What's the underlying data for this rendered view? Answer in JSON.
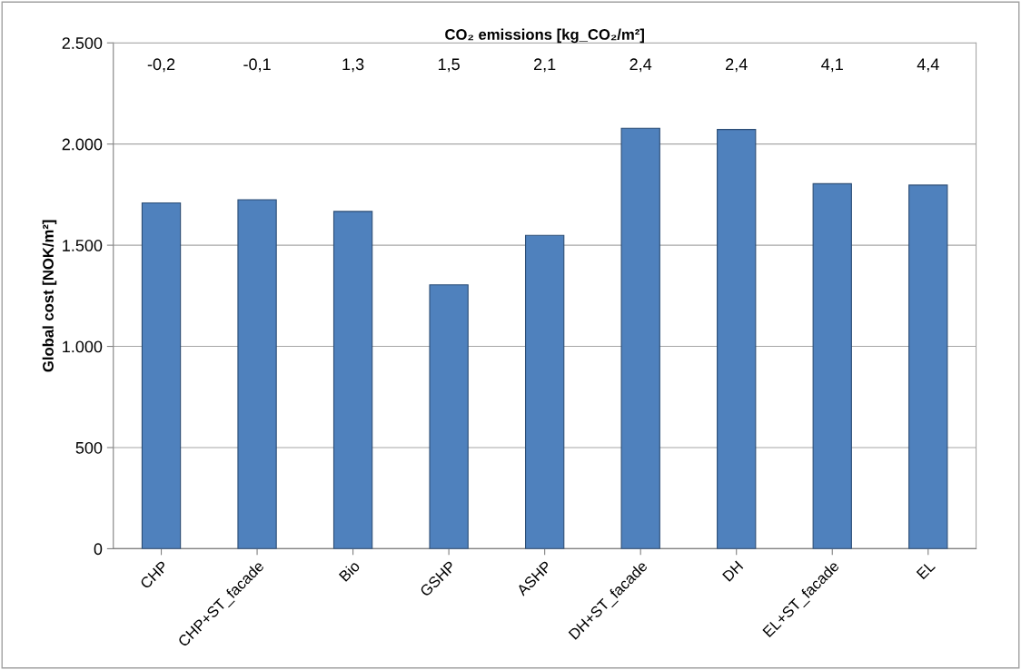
{
  "chart_data": {
    "type": "bar",
    "title": "CO₂ emissions [kg_CO₂/m²]",
    "ylabel": "Global cost [NOK/m²]",
    "categories": [
      "CHP",
      "CHP+ST_facade",
      "Bio",
      "GSHP",
      "ASHP",
      "DH+ST_facade",
      "DH",
      "EL+ST_facade",
      "EL"
    ],
    "values": [
      1709,
      1725,
      1667,
      1304,
      1549,
      2078,
      2072,
      1804,
      1797
    ],
    "color": "#4f81bd",
    "ylim": [
      0,
      2500
    ],
    "yticks": [
      {
        "value": 0,
        "label": "0"
      },
      {
        "value": 500,
        "label": "500"
      },
      {
        "value": 1000,
        "label": "1.000"
      },
      {
        "value": 1500,
        "label": "1.500"
      },
      {
        "value": 2000,
        "label": "2.000"
      },
      {
        "value": 2500,
        "label": "2.500"
      }
    ],
    "grid": "y",
    "annotations": [
      "-0,2",
      "-0,1",
      "1,3",
      "1,5",
      "2,1",
      "2,4",
      "2,4",
      "4,1",
      "4,4"
    ]
  }
}
